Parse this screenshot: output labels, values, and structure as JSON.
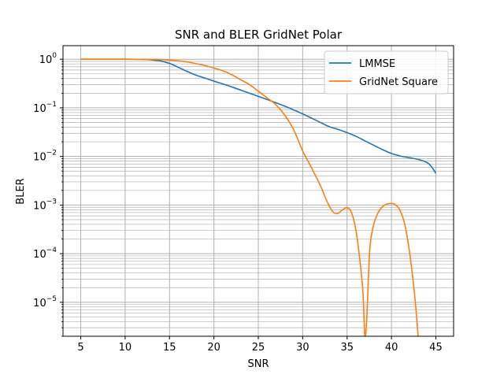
{
  "chart_data": {
    "type": "line",
    "title": "SNR and BLER GridNet Polar",
    "xlabel": "SNR",
    "ylabel": "BLER",
    "xlim": [
      3,
      47
    ],
    "ylim": [
      2e-06,
      1.9
    ],
    "yscale": "log",
    "grid": "both",
    "legend_position": "top-right",
    "x_ticks": [
      5,
      10,
      15,
      20,
      25,
      30,
      35,
      40,
      45
    ],
    "y_ticks": [
      {
        "value": 1,
        "base": "10",
        "exp": "0"
      },
      {
        "value": 0.1,
        "base": "10",
        "exp": "−1"
      },
      {
        "value": 0.01,
        "base": "10",
        "exp": "−2"
      },
      {
        "value": 0.001,
        "base": "10",
        "exp": "−3"
      },
      {
        "value": 0.0001,
        "base": "10",
        "exp": "−4"
      },
      {
        "value": 1e-05,
        "base": "10",
        "exp": "−5"
      }
    ],
    "series": [
      {
        "name": "LMMSE",
        "color": "#1f77b4",
        "x": [
          5,
          10,
          12,
          13,
          14,
          15,
          16,
          17,
          18,
          20,
          22,
          24,
          26,
          28,
          30,
          32,
          33,
          34,
          35,
          36,
          37,
          38,
          39,
          40,
          41,
          42,
          43,
          44,
          44.5,
          45
        ],
        "y": [
          1.0,
          1.0,
          0.99,
          0.97,
          0.92,
          0.82,
          0.68,
          0.56,
          0.47,
          0.355,
          0.27,
          0.2,
          0.148,
          0.108,
          0.075,
          0.05,
          0.041,
          0.036,
          0.031,
          0.026,
          0.021,
          0.017,
          0.0138,
          0.0115,
          0.0102,
          0.0094,
          0.0087,
          0.0075,
          0.0062,
          0.0045
        ]
      },
      {
        "name": "GridNet Square",
        "color": "#ff7f0e",
        "x": [
          5,
          10,
          13,
          15,
          16,
          17,
          18,
          19,
          20,
          21,
          22,
          23,
          24,
          25,
          26,
          27,
          28,
          29,
          30,
          31,
          32,
          32.5,
          33,
          33.5,
          34,
          34.5,
          35,
          35.5,
          36,
          36.5,
          36.8,
          37.0,
          37.2,
          37.4,
          37.6,
          38,
          38.5,
          39,
          39.5,
          40,
          40.5,
          41,
          41.5,
          42,
          42.5,
          42.8,
          43
        ],
        "y": [
          1.0,
          1.0,
          0.99,
          0.96,
          0.93,
          0.88,
          0.81,
          0.74,
          0.66,
          0.58,
          0.48,
          0.38,
          0.3,
          0.22,
          0.16,
          0.115,
          0.07,
          0.035,
          0.013,
          0.0058,
          0.0025,
          0.0015,
          0.00095,
          0.0007,
          0.00068,
          0.0008,
          0.00088,
          0.0007,
          0.0003,
          6e-05,
          1.5e-05,
          2e-06,
          4e-06,
          3e-05,
          0.00015,
          0.0004,
          0.0007,
          0.00093,
          0.00105,
          0.00108,
          0.001,
          0.00075,
          0.0004,
          0.00012,
          2.2e-05,
          6e-06,
          2e-06
        ]
      }
    ]
  }
}
